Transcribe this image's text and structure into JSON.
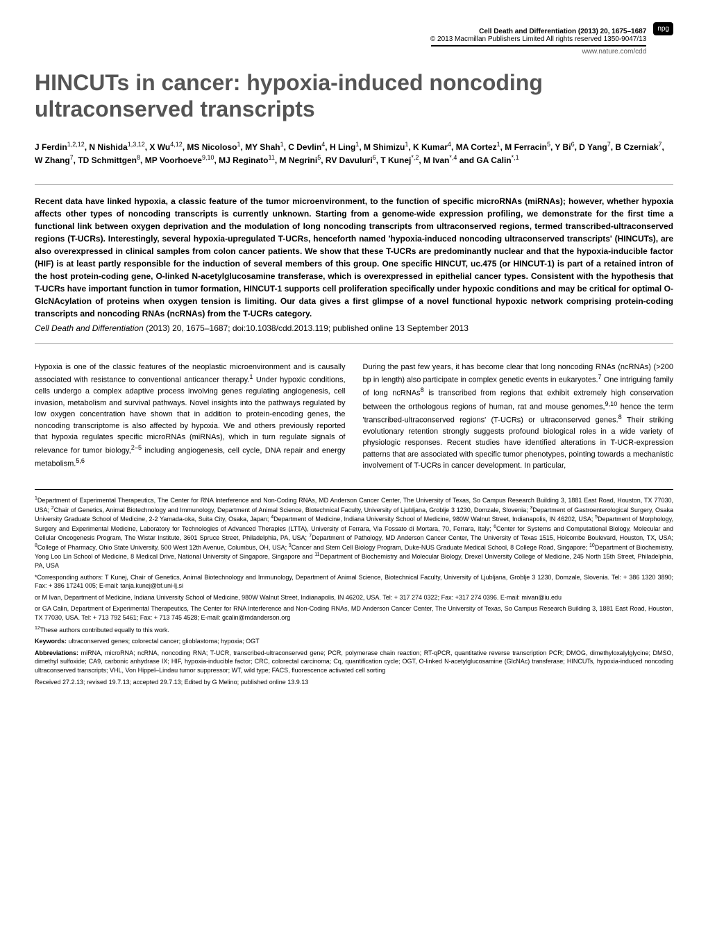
{
  "header": {
    "journal_info": "Cell Death and Differentiation (2013) 20, 1675–1687",
    "copyright": "© 2013 Macmillan Publishers Limited   All rights reserved 1350-9047/13",
    "website": "www.nature.com/cdd",
    "badge": "npg"
  },
  "title": "HINCUTs in cancer: hypoxia-induced noncoding ultraconserved transcripts",
  "authors": "J Ferdin1,2,12, N Nishida1,3,12, X Wu4,12, MS Nicoloso1, MY Shah1, C Devlin4, H Ling1, M Shimizu1, K Kumar4, MA Cortez1, M Ferracin5, Y Bi6, D Yang7, B Czerniak7, W Zhang7, TD Schmittgen8, MP Voorhoeve9,10, MJ Reginato11, M Negrini5, RV Davuluri6, T Kunej*,2, M Ivan*,4 and GA Calin*,1",
  "abstract": "Recent data have linked hypoxia, a classic feature of the tumor microenvironment, to the function of specific microRNAs (miRNAs); however, whether hypoxia affects other types of noncoding transcripts is currently unknown. Starting from a genome-wide expression profiling, we demonstrate for the first time a functional link between oxygen deprivation and the modulation of long noncoding transcripts from ultraconserved regions, termed transcribed-ultraconserved regions (T-UCRs). Interestingly, several hypoxia-upregulated T-UCRs, henceforth named 'hypoxia-induced noncoding ultraconserved transcripts' (HINCUTs), are also overexpressed in clinical samples from colon cancer patients. We show that these T-UCRs are predominantly nuclear and that the hypoxia-inducible factor (HIF) is at least partly responsible for the induction of several members of this group. One specific HINCUT, uc.475 (or HINCUT-1) is part of a retained intron of the host protein-coding gene, O-linked N-acetylglucosamine transferase, which is overexpressed in epithelial cancer types. Consistent with the hypothesis that T-UCRs have important function in tumor formation, HINCUT-1 supports cell proliferation specifically under hypoxic conditions and may be critical for optimal O-GlcNAcylation of proteins when oxygen tension is limiting. Our data gives a first glimpse of a novel functional hypoxic network comprising protein-coding transcripts and noncoding RNAs (ncRNAs) from the T-UCRs category.",
  "citation": {
    "journal": "Cell Death and Differentiation",
    "details": "(2013) 20, 1675–1687; doi:10.1038/cdd.2013.119; published online 13 September 2013"
  },
  "body": {
    "left_column": "Hypoxia is one of the classic features of the neoplastic microenvironment and is causally associated with resistance to conventional anticancer therapy.1 Under hypoxic conditions, cells undergo a complex adaptive process involving genes regulating angiogenesis, cell invasion, metabolism and survival pathways. Novel insights into the pathways regulated by low oxygen concentration have shown that in addition to protein-encoding genes, the noncoding transcriptome is also affected by hypoxia. We and others previously reported that hypoxia regulates specific microRNAs (miRNAs), which in turn regulate signals of relevance for tumor biology,2–5 including angiogenesis, cell cycle, DNA repair and energy metabolism.5,6",
    "right_column": "During the past few years, it has become clear that long noncoding RNAs (ncRNAs) (>200 bp in length) also participate in complex genetic events in eukaryotes.7 One intriguing family of long ncRNAs8 is transcribed from regions that exhibit extremely high conservation between the orthologous regions of human, rat and mouse genomes,9,10 hence the term 'transcribed-ultraconserved regions' (T-UCRs) or ultraconserved genes.8 Their striking evolutionary retention strongly suggests profound biological roles in a wide variety of physiologic responses. Recent studies have identified alterations in T-UCR-expression patterns that are associated with specific tumor phenotypes, pointing towards a mechanistic involvement of T-UCRs in cancer development. In particular,"
  },
  "footnotes": {
    "affiliations": "1Department of Experimental Therapeutics, The Center for RNA Interference and Non-Coding RNAs, MD Anderson Cancer Center, The University of Texas, So Campus Research Building 3, 1881 East Road, Houston, TX 77030, USA; 2Chair of Genetics, Animal Biotechnology and Immunology, Department of Animal Science, Biotechnical Faculty, University of Ljubljana, Groblje 3 1230, Domzale, Slovenia; 3Department of Gastroenterological Surgery, Osaka University Graduate School of Medicine, 2-2 Yamada-oka, Suita City, Osaka, Japan; 4Department of Medicine, Indiana University School of Medicine, 980W Walnut Street, Indianapolis, IN 46202, USA; 5Department of Morphology, Surgery and Experimental Medicine, Laboratory for Technologies of Advanced Therapies (LTTA), University of Ferrara, Via Fossato di Mortara, 70, Ferrara, Italy; 6Center for Systems and Computational Biology, Molecular and Cellular Oncogenesis Program, The Wistar Institute, 3601 Spruce Street, Philadelphia, PA, USA; 7Department of Pathology, MD Anderson Cancer Center, The University of Texas 1515, Holcombe Boulevard, Houston, TX, USA; 8College of Pharmacy, Ohio State University, 500 West 12th Avenue, Columbus, OH, USA; 9Cancer and Stem Cell Biology Program, Duke-NUS Graduate Medical School, 8 College Road, Singapore; 10Department of Biochemistry, Yong Loo Lin School of Medicine, 8 Medical Drive, National University of Singapore, Singapore and 11Department of Biochemistry and Molecular Biology, Drexel University College of Medicine, 245 North 15th Street, Philadelphia, PA, USA",
    "corresponding1": "*Corresponding authors: T Kunej, Chair of Genetics, Animal Biotechnology and Immunology, Department of Animal Science, Biotechnical Faculty, University of Ljubljana, Groblje 3 1230, Domzale, Slovenia. Tel: + 386 1320 3890; Fax: + 386 17241 005; E-mail: tanja.kunej@bf.uni-lj.si",
    "corresponding2": "or M Ivan, Department of Medicine, Indiana University School of Medicine, 980W Walnut Street, Indianapolis, IN 46202, USA. Tel: + 317 274 0322; Fax: +317 274 0396. E-mail: mivan@iu.edu",
    "corresponding3": "or GA Calin, Department of Experimental Therapeutics, The Center for RNA Interference and Non-Coding RNAs, MD Anderson Cancer Center, The University of Texas, So Campus Research Building 3, 1881 East Road, Houston, TX 77030, USA. Tel: + 713 792 5461; Fax: + 713 745 4528; E-mail: gcalin@mdanderson.org",
    "equal_contribution": "12These authors contributed equally to this work.",
    "keywords_label": "Keywords:",
    "keywords": " ultraconserved genes; colorectal cancer; glioblastoma; hypoxia; OGT",
    "abbreviations_label": "Abbreviations:",
    "abbreviations": " miRNA, microRNA; ncRNA, noncoding RNA; T-UCR, transcribed-ultraconserved gene; PCR, polymerase chain reaction; RT-qPCR, quantitative reverse transcription PCR; DMOG, dimethyloxalylglycine; DMSO, dimethyl sulfoxide; CA9, carbonic anhydrase IX; HIF, hypoxia-inducible factor; CRC, colorectal carcinoma; Cq, quantification cycle; OGT, O-linked N-acetylglucosamine (GlcNAc) transferase; HINCUTs, hypoxia-induced noncoding ultraconserved transcripts; VHL, Von Hippel–Lindau tumor suppressor; WT, wild type; FACS, fluorescence activated cell sorting",
    "received": "Received 27.2.13; revised 19.7.13; accepted 29.7.13; Edited by G Melino; published online 13.9.13"
  }
}
